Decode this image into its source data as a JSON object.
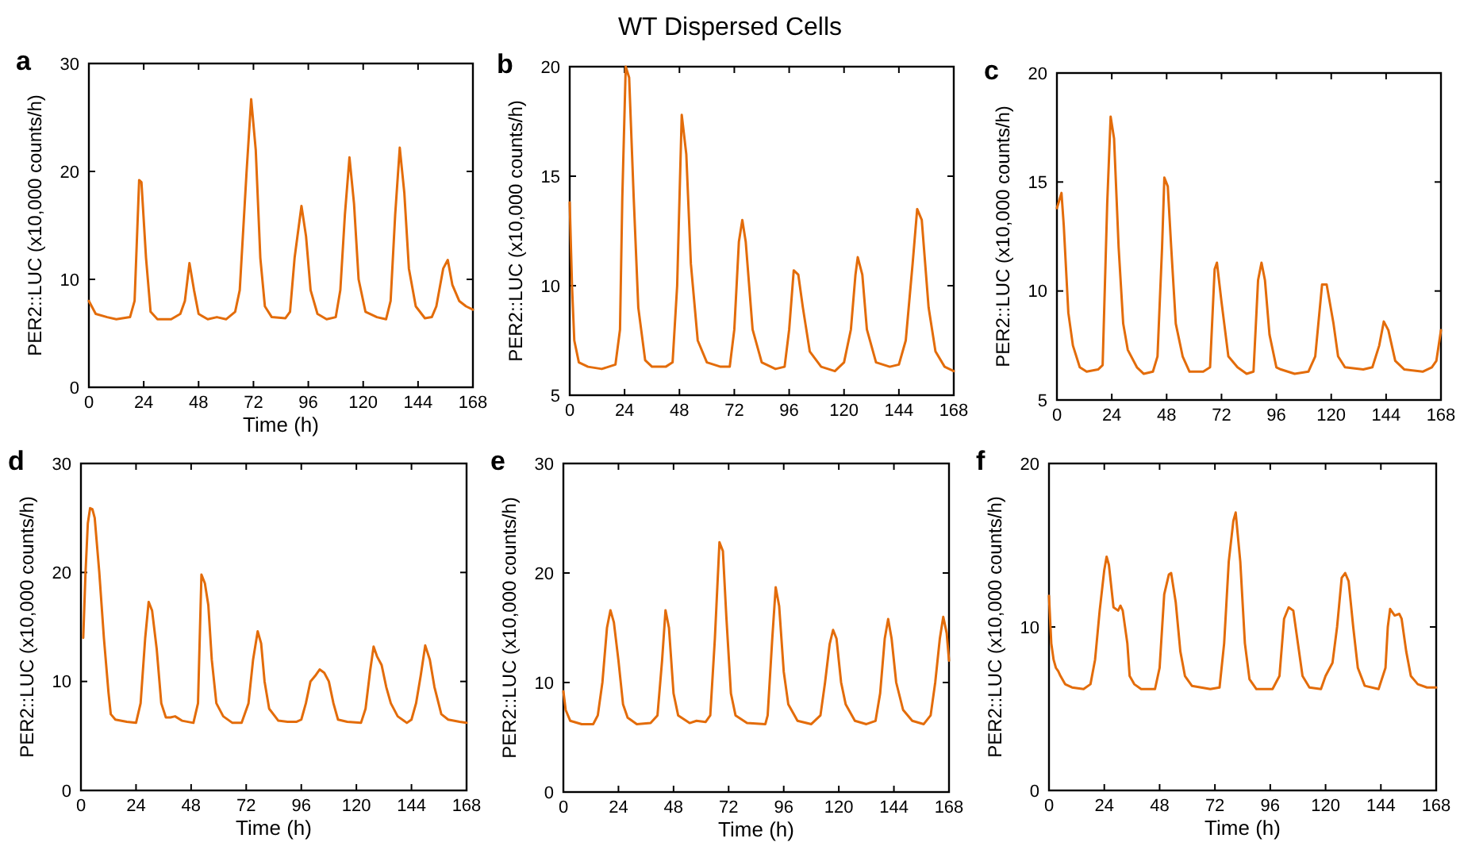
{
  "chart_data": [
    {
      "type": "line",
      "title": "a",
      "annotations": [
        "WT Dispersed Cells"
      ],
      "xlabel": "Time (h)",
      "ylabel": "PER2::LUC  (x10,000 counts/h)",
      "xlim": [
        0,
        168
      ],
      "xticks": [
        0,
        24,
        48,
        72,
        96,
        120,
        144,
        168
      ],
      "ylim": [
        0,
        30
      ],
      "yticks": [
        0,
        10,
        20,
        30
      ],
      "series": [
        {
          "color": "#e36c0a",
          "x": [
            0,
            3,
            8,
            12,
            18,
            20,
            22,
            23,
            25,
            27,
            30,
            36,
            40,
            42,
            44,
            46,
            48,
            52,
            56,
            60,
            64,
            66,
            69,
            71,
            73,
            75,
            77,
            80,
            86,
            88,
            90,
            93,
            95,
            97,
            100,
            104,
            108,
            110,
            112,
            114,
            116,
            118,
            121,
            126,
            130,
            132,
            134,
            136,
            138,
            140,
            143,
            147,
            150,
            152,
            155,
            157,
            159,
            162,
            165,
            168
          ],
          "values": [
            8,
            6.8,
            6.5,
            6.3,
            6.5,
            8,
            19.2,
            19,
            12,
            7,
            6.3,
            6.3,
            6.8,
            8,
            11.5,
            9,
            6.8,
            6.3,
            6.5,
            6.3,
            7,
            9,
            20,
            26.7,
            22,
            12,
            7.5,
            6.5,
            6.4,
            7,
            12,
            16.8,
            14,
            9,
            6.8,
            6.3,
            6.5,
            9,
            16,
            21.3,
            17,
            10,
            7,
            6.5,
            6.3,
            8,
            16,
            22.2,
            18,
            11,
            7.5,
            6.4,
            6.5,
            7.5,
            11,
            11.8,
            9.5,
            8,
            7.5,
            7.2
          ]
        }
      ]
    },
    {
      "type": "line",
      "title": "b",
      "ylabel": "PER2::LUC  (x10,000 counts/h)",
      "xlim": [
        0,
        168
      ],
      "xticks": [
        0,
        24,
        48,
        72,
        96,
        120,
        144,
        168
      ],
      "ylim": [
        5,
        20
      ],
      "yticks": [
        5,
        10,
        15,
        20
      ],
      "series": [
        {
          "color": "#e36c0a",
          "x": [
            0,
            1,
            2,
            4,
            8,
            14,
            20,
            22,
            23,
            24.5,
            26,
            28,
            30,
            33,
            36,
            42,
            45,
            47,
            49,
            51,
            53,
            56,
            60,
            66,
            70,
            72,
            74,
            75.5,
            77,
            80,
            84,
            90,
            94,
            96,
            98,
            100,
            102,
            105,
            110,
            116,
            120,
            123,
            125,
            126,
            128,
            130,
            134,
            140,
            144,
            147,
            150,
            152,
            154,
            157,
            160,
            164,
            168
          ],
          "values": [
            13.8,
            10,
            7.5,
            6.5,
            6.3,
            6.2,
            6.4,
            8,
            14,
            20,
            19.5,
            14,
            9,
            6.6,
            6.3,
            6.3,
            6.5,
            10,
            17.8,
            16,
            11,
            7.5,
            6.5,
            6.3,
            6.3,
            8,
            12,
            13,
            12,
            8,
            6.5,
            6.2,
            6.3,
            8,
            10.7,
            10.5,
            9,
            7,
            6.3,
            6.1,
            6.5,
            8,
            10.5,
            11.3,
            10.5,
            8,
            6.5,
            6.3,
            6.4,
            7.5,
            11,
            13.5,
            13,
            9,
            7,
            6.3,
            6.1
          ]
        }
      ]
    },
    {
      "type": "line",
      "title": "c",
      "ylabel": "PER2::LUC  (x10,000 counts/h)",
      "xlim": [
        0,
        168
      ],
      "xticks": [
        0,
        24,
        48,
        72,
        96,
        120,
        144,
        168
      ],
      "ylim": [
        5,
        20
      ],
      "yticks": [
        5,
        10,
        15,
        20
      ],
      "series": [
        {
          "color": "#e36c0a",
          "x": [
            0,
            2,
            3,
            5,
            7,
            10,
            13,
            18,
            20,
            22,
            23.5,
            25,
            27,
            29,
            31,
            35,
            38,
            42,
            44,
            46,
            47,
            48.5,
            50,
            52,
            55,
            58,
            64,
            67,
            69,
            70,
            72,
            75,
            79,
            83,
            86,
            88,
            89.5,
            91,
            93,
            96,
            98,
            104,
            110,
            113,
            116,
            118,
            121,
            123,
            126,
            134,
            138,
            141,
            143,
            145,
            148,
            152,
            160,
            164,
            166,
            168
          ],
          "values": [
            13.8,
            14.5,
            13,
            9,
            7.5,
            6.5,
            6.3,
            6.4,
            6.6,
            14,
            18,
            17,
            12,
            8.5,
            7.3,
            6.5,
            6.2,
            6.3,
            7,
            12,
            15.2,
            14.8,
            12,
            8.5,
            7,
            6.3,
            6.3,
            6.5,
            11,
            11.3,
            9.5,
            7,
            6.5,
            6.2,
            6.3,
            10.5,
            11.3,
            10.5,
            8,
            6.5,
            6.4,
            6.2,
            6.3,
            7,
            10.3,
            10.3,
            8.5,
            7,
            6.5,
            6.4,
            6.5,
            7.5,
            8.6,
            8.2,
            6.8,
            6.4,
            6.3,
            6.5,
            6.8,
            8.2
          ]
        }
      ]
    },
    {
      "type": "line",
      "title": "d",
      "xlabel": "Time (h)",
      "ylabel": "PER2::LUC  (x10,000 counts/h)",
      "xlim": [
        0,
        168
      ],
      "xticks": [
        0,
        24,
        48,
        72,
        96,
        120,
        144,
        168
      ],
      "ylim": [
        0,
        30
      ],
      "yticks": [
        0,
        10,
        20,
        30
      ],
      "series": [
        {
          "color": "#e36c0a",
          "x": [
            1,
            2,
            3,
            4,
            5,
            6,
            8,
            10,
            12,
            13,
            15,
            20,
            24,
            26,
            28,
            29.5,
            31,
            33,
            35,
            37,
            39,
            41,
            44,
            49,
            51,
            52.5,
            54,
            55.5,
            57,
            59,
            62,
            66,
            70,
            73,
            75,
            77,
            78.5,
            80,
            82,
            86,
            90,
            94,
            96,
            98,
            100,
            102,
            104,
            106,
            108,
            110,
            112,
            116,
            122,
            124,
            126,
            127.5,
            129,
            131,
            133,
            135,
            138,
            142,
            144,
            146,
            148,
            150,
            152,
            154,
            157,
            160,
            165,
            168
          ],
          "values": [
            14,
            20,
            24.5,
            25.9,
            25.8,
            25,
            20,
            14,
            9,
            7,
            6.5,
            6.3,
            6.2,
            8,
            14,
            17.3,
            16.5,
            13,
            8,
            6.7,
            6.7,
            6.8,
            6.4,
            6.2,
            8,
            19.8,
            19,
            17,
            12,
            8,
            6.8,
            6.2,
            6.2,
            8,
            12,
            14.6,
            13.5,
            10,
            7.5,
            6.4,
            6.3,
            6.3,
            6.5,
            8,
            10,
            10.5,
            11.1,
            10.8,
            10,
            8,
            6.5,
            6.3,
            6.2,
            7.5,
            11,
            13.2,
            12.3,
            11.5,
            9.5,
            8,
            6.8,
            6.2,
            6.5,
            8,
            10.5,
            13.3,
            12,
            9.5,
            7,
            6.5,
            6.3,
            6.2
          ]
        }
      ]
    },
    {
      "type": "line",
      "title": "e",
      "xlabel": "Time (h)",
      "ylabel": "PER2::LUC  (x10,000 counts/h)",
      "xlim": [
        0,
        168
      ],
      "xticks": [
        0,
        24,
        48,
        72,
        96,
        120,
        144,
        168
      ],
      "ylim": [
        0,
        30
      ],
      "yticks": [
        0,
        10,
        20,
        30
      ],
      "series": [
        {
          "color": "#e36c0a",
          "x": [
            0,
            1,
            3,
            8,
            13,
            15,
            17,
            19,
            20.5,
            22,
            24,
            26,
            28,
            32,
            38,
            41,
            43,
            44.5,
            46,
            48,
            50,
            55,
            58,
            62,
            64,
            66,
            68,
            69.5,
            71,
            73,
            75,
            80,
            88,
            89,
            91,
            92.5,
            94,
            96,
            98,
            102,
            108,
            112,
            114,
            116,
            117.5,
            119,
            121,
            123,
            127,
            132,
            136,
            138,
            140,
            141.5,
            143,
            145,
            148,
            152,
            157,
            160,
            162,
            164,
            165.5,
            167,
            168
          ],
          "values": [
            9.2,
            7.5,
            6.5,
            6.2,
            6.2,
            7,
            10,
            15,
            16.6,
            15.5,
            12,
            8,
            6.8,
            6.2,
            6.3,
            7,
            12,
            16.6,
            15,
            9,
            7,
            6.3,
            6.5,
            6.4,
            7,
            14,
            22.8,
            22,
            16,
            9,
            7,
            6.3,
            6.2,
            7,
            14,
            18.7,
            17,
            11,
            8,
            6.5,
            6.2,
            7,
            10,
            13.5,
            14.8,
            14,
            10,
            8,
            6.5,
            6.2,
            6.5,
            9,
            14,
            15.8,
            14,
            10,
            7.5,
            6.5,
            6.2,
            7,
            10,
            14,
            16,
            14.5,
            12
          ]
        }
      ]
    },
    {
      "type": "line",
      "title": "f",
      "xlabel": "Time (h)",
      "ylabel": "PER2::LUC  (x10,000 counts/h)",
      "xlim": [
        0,
        168
      ],
      "xticks": [
        0,
        24,
        48,
        72,
        96,
        120,
        144,
        168
      ],
      "ylim": [
        0,
        20
      ],
      "yticks": [
        0,
        10,
        20
      ],
      "series": [
        {
          "color": "#e36c0a",
          "x": [
            0,
            1,
            2,
            3,
            4,
            5,
            7,
            10,
            15,
            18,
            20,
            22,
            24,
            25,
            26,
            28,
            30,
            31,
            32,
            34,
            35,
            37,
            40,
            46,
            48,
            50,
            52,
            53,
            55,
            57,
            59,
            62,
            70,
            74,
            76,
            78,
            80,
            81,
            83,
            85,
            87,
            90,
            97,
            100,
            102,
            104,
            106,
            108,
            110,
            113,
            118,
            120,
            123,
            125,
            127,
            128.5,
            130,
            132,
            134,
            137,
            143,
            146,
            147,
            148,
            150,
            152,
            153,
            155,
            157,
            160,
            164,
            168
          ],
          "values": [
            11.9,
            9,
            8,
            7.5,
            7.3,
            7,
            6.5,
            6.3,
            6.2,
            6.5,
            8,
            11,
            13.5,
            14.3,
            13.8,
            11.2,
            11,
            11.3,
            11,
            9,
            7,
            6.5,
            6.2,
            6.2,
            7.5,
            12,
            13.2,
            13.3,
            11.5,
            8.5,
            7,
            6.4,
            6.2,
            6.3,
            9,
            14,
            16.5,
            17,
            14,
            9,
            6.8,
            6.2,
            6.2,
            7,
            10.5,
            11.2,
            11,
            9,
            7,
            6.3,
            6.2,
            7,
            7.8,
            10,
            13,
            13.3,
            12.8,
            10,
            7.5,
            6.4,
            6.2,
            7.5,
            10,
            11.1,
            10.7,
            10.8,
            10.5,
            8.5,
            7,
            6.5,
            6.3,
            6.3
          ]
        }
      ]
    }
  ]
}
